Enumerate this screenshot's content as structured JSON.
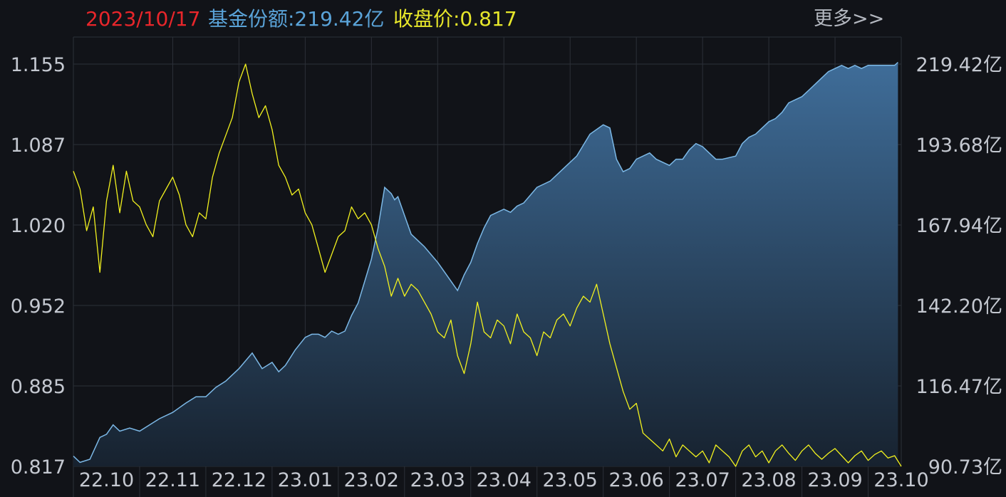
{
  "header": {
    "date": "2023/10/17",
    "fund_share_label": "基金份额:219.42亿",
    "close_price_label": "收盘价:0.817",
    "more_link": "更多>>"
  },
  "colors": {
    "background": "#111318",
    "grid": "#2c3038",
    "date_text": "#e8262b",
    "fund_text": "#5aa3d8",
    "price_text": "#e6e62a",
    "area_line": "#7cb8e6",
    "area_fill_top": "#3f6d99",
    "area_fill_bottom": "#17222f",
    "price_line": "#f2f21e",
    "axis_text": "#c4c8d0"
  },
  "chart_data": {
    "type": "line",
    "x_ticks": [
      "22.10",
      "22.11",
      "22.12",
      "23.01",
      "23.02",
      "23.03",
      "23.04",
      "23.05",
      "23.06",
      "23.07",
      "23.08",
      "23.09",
      "23.10"
    ],
    "left_axis_ticks": [
      "1.155",
      "1.087",
      "1.020",
      "0.952",
      "0.885",
      "0.817"
    ],
    "right_axis_ticks": [
      "219.42亿",
      "193.68亿",
      "167.94亿",
      "142.20亿",
      "116.47亿",
      "90.73亿"
    ],
    "left_ylim": [
      0.817,
      1.155
    ],
    "right_ylim": [
      90.73,
      219.42
    ],
    "x_range": [
      0,
      12.5
    ],
    "grid": true,
    "series": [
      {
        "name": "基金份额",
        "axis": "right",
        "style": "area",
        "unit": "亿",
        "x": [
          0,
          0.1,
          0.25,
          0.4,
          0.5,
          0.6,
          0.7,
          0.85,
          1.0,
          1.15,
          1.3,
          1.5,
          1.7,
          1.85,
          2.0,
          2.15,
          2.3,
          2.5,
          2.7,
          2.85,
          3.0,
          3.1,
          3.2,
          3.35,
          3.5,
          3.6,
          3.7,
          3.8,
          3.9,
          4.0,
          4.1,
          4.2,
          4.3,
          4.4,
          4.5,
          4.6,
          4.7,
          4.8,
          4.85,
          4.9,
          5.0,
          5.1,
          5.2,
          5.3,
          5.5,
          5.6,
          5.8,
          5.9,
          6.0,
          6.1,
          6.2,
          6.3,
          6.5,
          6.6,
          6.7,
          6.8,
          7.0,
          7.2,
          7.4,
          7.6,
          7.8,
          8.0,
          8.1,
          8.2,
          8.3,
          8.4,
          8.5,
          8.6,
          8.7,
          8.8,
          9.0,
          9.1,
          9.2,
          9.3,
          9.4,
          9.5,
          9.6,
          9.7,
          9.8,
          10.0,
          10.1,
          10.2,
          10.3,
          10.4,
          10.5,
          10.6,
          10.7,
          10.8,
          10.9,
          11.0,
          11.1,
          11.2,
          11.3,
          11.4,
          11.5,
          11.6,
          11.7,
          11.8,
          11.9,
          12.0,
          12.1,
          12.2,
          12.3,
          12.4,
          12.45
        ],
        "values": [
          94,
          92,
          93,
          100,
          101,
          104,
          102,
          103,
          102,
          104,
          106,
          108,
          111,
          113,
          113,
          116,
          118,
          122,
          127,
          122,
          124,
          121,
          123,
          128,
          132,
          133,
          133,
          132,
          134,
          133,
          134,
          139,
          143,
          150,
          157,
          167,
          180,
          178,
          176,
          177,
          171,
          165,
          163,
          161,
          156,
          153,
          147,
          152,
          156,
          162,
          167,
          171,
          173,
          172,
          174,
          175,
          180,
          182,
          186,
          190,
          197,
          200,
          199,
          189,
          185,
          186,
          189,
          190,
          191,
          189,
          187,
          189,
          189,
          192,
          194,
          193,
          191,
          189,
          189,
          190,
          194,
          196,
          197,
          199,
          201,
          202,
          204,
          207,
          208,
          209,
          211,
          213,
          215,
          217,
          218,
          219,
          218,
          219,
          218,
          219,
          219,
          219,
          219,
          219,
          220
        ]
      },
      {
        "name": "收盘价",
        "axis": "left",
        "style": "line",
        "x": [
          0,
          0.1,
          0.2,
          0.3,
          0.4,
          0.5,
          0.6,
          0.7,
          0.8,
          0.9,
          1.0,
          1.1,
          1.2,
          1.3,
          1.4,
          1.5,
          1.6,
          1.7,
          1.8,
          1.9,
          2.0,
          2.1,
          2.2,
          2.3,
          2.4,
          2.5,
          2.6,
          2.7,
          2.8,
          2.9,
          3.0,
          3.1,
          3.2,
          3.3,
          3.4,
          3.5,
          3.6,
          3.7,
          3.8,
          3.9,
          4.0,
          4.1,
          4.2,
          4.3,
          4.4,
          4.5,
          4.6,
          4.7,
          4.8,
          4.9,
          5.0,
          5.1,
          5.2,
          5.3,
          5.4,
          5.5,
          5.6,
          5.7,
          5.8,
          5.9,
          6.0,
          6.1,
          6.2,
          6.3,
          6.4,
          6.5,
          6.6,
          6.7,
          6.8,
          6.9,
          7.0,
          7.1,
          7.2,
          7.3,
          7.4,
          7.5,
          7.6,
          7.7,
          7.8,
          7.9,
          8.0,
          8.1,
          8.2,
          8.3,
          8.4,
          8.5,
          8.6,
          8.7,
          8.8,
          8.9,
          9.0,
          9.1,
          9.2,
          9.3,
          9.4,
          9.5,
          9.6,
          9.7,
          9.8,
          9.9,
          10.0,
          10.1,
          10.2,
          10.3,
          10.4,
          10.5,
          10.6,
          10.7,
          10.8,
          10.9,
          11.0,
          11.1,
          11.2,
          11.3,
          11.4,
          11.5,
          11.6,
          11.7,
          11.8,
          11.9,
          12.0,
          12.1,
          12.2,
          12.3,
          12.4,
          12.5
        ],
        "values": [
          1.065,
          1.05,
          1.015,
          1.035,
          0.98,
          1.04,
          1.07,
          1.03,
          1.065,
          1.04,
          1.035,
          1.02,
          1.01,
          1.04,
          1.05,
          1.06,
          1.045,
          1.02,
          1.01,
          1.03,
          1.025,
          1.06,
          1.08,
          1.095,
          1.11,
          1.14,
          1.155,
          1.13,
          1.11,
          1.12,
          1.1,
          1.07,
          1.06,
          1.045,
          1.05,
          1.03,
          1.02,
          1.0,
          0.98,
          0.995,
          1.01,
          1.015,
          1.035,
          1.025,
          1.03,
          1.02,
          1.0,
          0.985,
          0.96,
          0.975,
          0.96,
          0.97,
          0.965,
          0.955,
          0.945,
          0.93,
          0.925,
          0.94,
          0.91,
          0.895,
          0.92,
          0.955,
          0.93,
          0.925,
          0.94,
          0.935,
          0.92,
          0.945,
          0.93,
          0.925,
          0.91,
          0.93,
          0.925,
          0.94,
          0.945,
          0.935,
          0.95,
          0.96,
          0.955,
          0.97,
          0.945,
          0.92,
          0.9,
          0.88,
          0.865,
          0.87,
          0.845,
          0.84,
          0.835,
          0.83,
          0.84,
          0.825,
          0.835,
          0.83,
          0.825,
          0.83,
          0.82,
          0.835,
          0.83,
          0.825,
          0.817,
          0.83,
          0.835,
          0.825,
          0.83,
          0.82,
          0.83,
          0.835,
          0.828,
          0.822,
          0.83,
          0.835,
          0.828,
          0.823,
          0.828,
          0.832,
          0.826,
          0.82,
          0.826,
          0.83,
          0.822,
          0.827,
          0.83,
          0.824,
          0.826,
          0.817
        ]
      }
    ]
  }
}
